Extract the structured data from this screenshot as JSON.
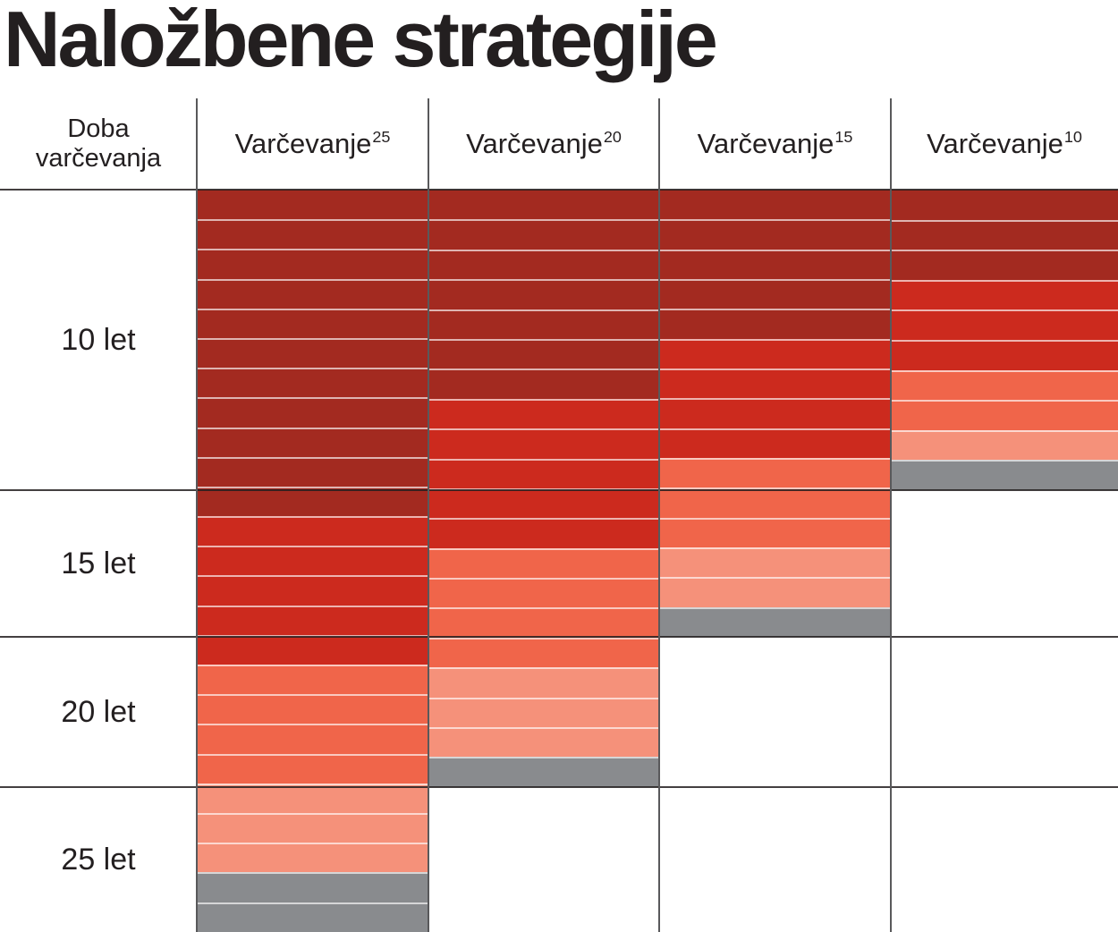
{
  "title": "Naložbene strategije",
  "table": {
    "corner_header": {
      "line1": "Doba",
      "line2": "varčevanja"
    },
    "row_labels": [
      "10 let",
      "15 let",
      "20 let",
      "25 let"
    ]
  },
  "chart_data": {
    "type": "bar",
    "subtype": "stacked-glide-path-table",
    "title": "Naložbene strategije",
    "row_axis_label": "Doba varčevanja",
    "row_groups": [
      {
        "label": "10 let",
        "bars": 10
      },
      {
        "label": "15 let",
        "bars": 5
      },
      {
        "label": "20 let",
        "bars": 5
      },
      {
        "label": "25 let",
        "bars": 5
      }
    ],
    "palette": {
      "dark_red": "#A32A20",
      "bright_red": "#CC2A1E",
      "tomato": "#F0654A",
      "salmon": "#F5917A",
      "gray": "#898B8E"
    },
    "columns": [
      {
        "name": "Varčevanje",
        "sup": "25",
        "total_bars": 25,
        "segments": [
          {
            "color": "dark_red",
            "count": 11
          },
          {
            "color": "bright_red",
            "count": 5
          },
          {
            "color": "tomato",
            "count": 4
          },
          {
            "color": "salmon",
            "count": 3
          },
          {
            "color": "gray",
            "count": 2
          }
        ]
      },
      {
        "name": "Varčevanje",
        "sup": "20",
        "total_bars": 20,
        "segments": [
          {
            "color": "dark_red",
            "count": 7
          },
          {
            "color": "bright_red",
            "count": 5
          },
          {
            "color": "tomato",
            "count": 4
          },
          {
            "color": "salmon",
            "count": 3
          },
          {
            "color": "gray",
            "count": 1
          }
        ]
      },
      {
        "name": "Varčevanje",
        "sup": "15",
        "total_bars": 15,
        "segments": [
          {
            "color": "dark_red",
            "count": 5
          },
          {
            "color": "bright_red",
            "count": 4
          },
          {
            "color": "tomato",
            "count": 3
          },
          {
            "color": "salmon",
            "count": 2
          },
          {
            "color": "gray",
            "count": 1
          }
        ]
      },
      {
        "name": "Varčevanje",
        "sup": "10",
        "total_bars": 10,
        "segments": [
          {
            "color": "dark_red",
            "count": 3
          },
          {
            "color": "bright_red",
            "count": 3
          },
          {
            "color": "tomato",
            "count": 2
          },
          {
            "color": "salmon",
            "count": 1
          },
          {
            "color": "gray",
            "count": 1
          }
        ]
      }
    ],
    "colors": {
      "text": "#231F20",
      "column_divider": "#59595B",
      "group_boundary": "#231F20",
      "bar_separator": "rgba(255,255,255,0.65)"
    }
  }
}
